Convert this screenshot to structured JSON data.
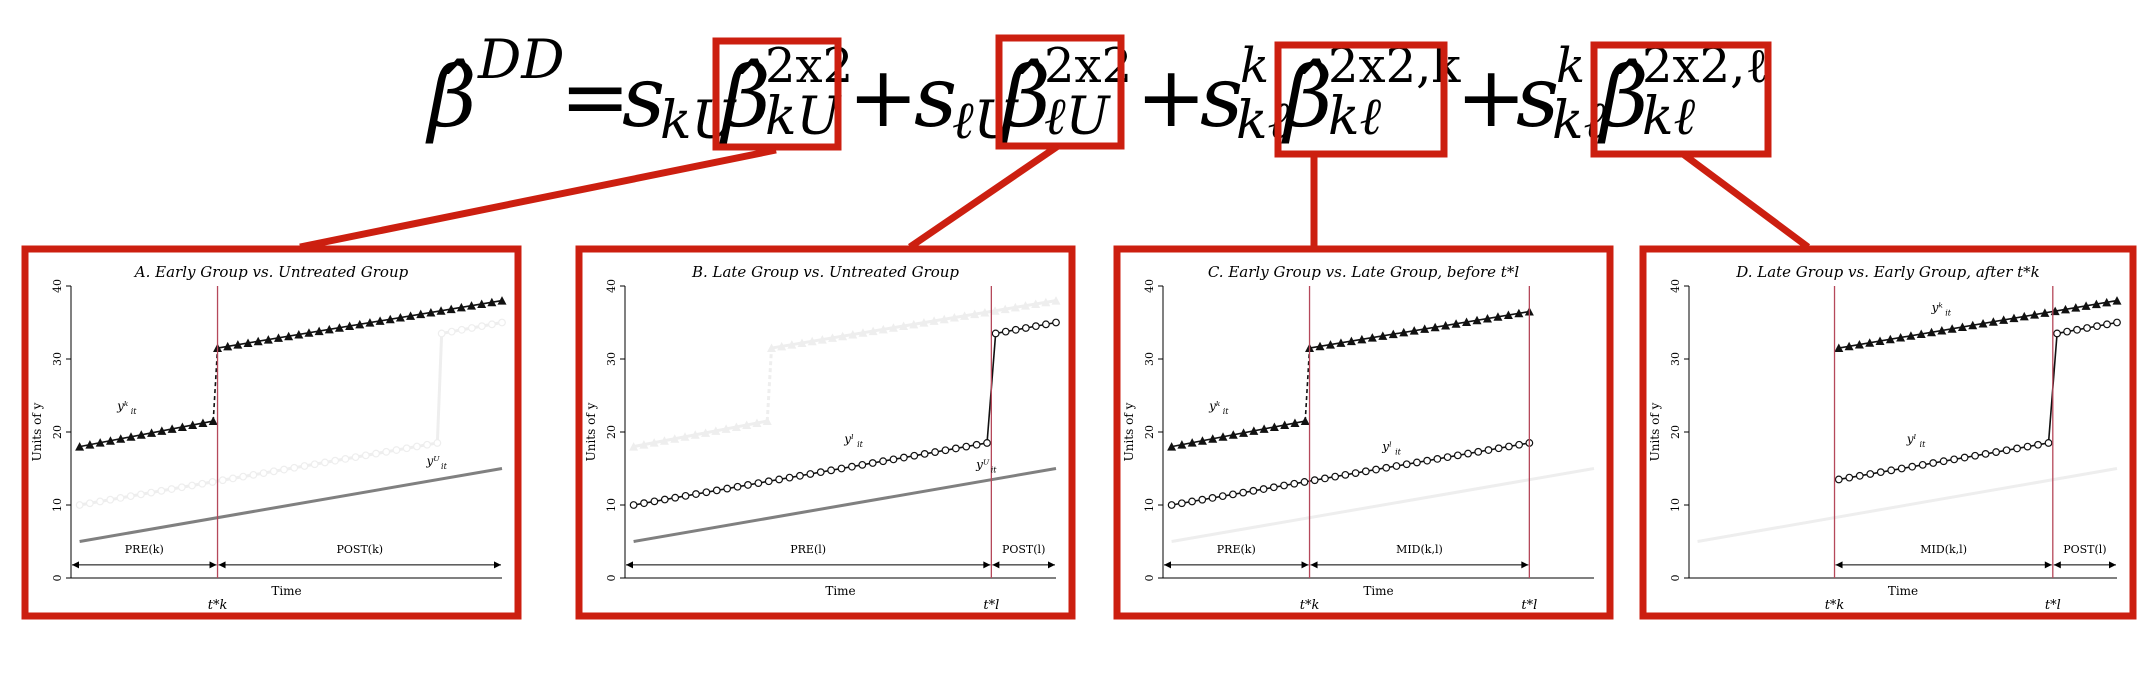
{
  "equation": {
    "lhs": "β̂",
    "lhs_sup": "DD",
    "equals": "=",
    "plus": "+",
    "terms": [
      {
        "weight": "s",
        "weight_sub": "kU",
        "weight_sup": "",
        "beta": "β̂",
        "beta_sup": "2x2",
        "beta_sub": "kU"
      },
      {
        "weight": "s",
        "weight_sub": "ℓU",
        "weight_sup": "",
        "beta": "β̂",
        "beta_sup": "2x2",
        "beta_sub": "ℓU"
      },
      {
        "weight": "s",
        "weight_sub": "kℓ",
        "weight_sup": "k",
        "beta": "β̂",
        "beta_sup": "2x2,k",
        "beta_sub": "kℓ"
      },
      {
        "weight": "s",
        "weight_sub": "kℓ",
        "weight_sup": "k",
        "beta": "β̂",
        "beta_sup": "2x2,ℓ",
        "beta_sub": "kℓ"
      }
    ]
  },
  "colors": {
    "highlight": "#cc1f10",
    "treated_line": "#b5485a",
    "early": "#000000",
    "late": "#222222",
    "untreated": "#808080",
    "faded": "#eeeeee"
  },
  "chart_data": [
    {
      "type": "line",
      "title": "A. Early Group vs. Untreated Group",
      "xlabel": "Time",
      "ylabel": "Units of y",
      "yticks": [
        "0",
        "10",
        "20",
        "30",
        "40"
      ],
      "ylim": [
        0,
        40
      ],
      "xlim": [
        0,
        100
      ],
      "treatment_times": [
        {
          "x": 34,
          "label": "t*k"
        }
      ],
      "periods": [
        {
          "from": 0,
          "to": 34,
          "label": "PRE(k)"
        },
        {
          "from": 34,
          "to": 100,
          "label": "POST(k)"
        }
      ],
      "series_labels": [
        {
          "text": "yᵏ",
          "sub": "it",
          "x": 12,
          "y": 23
        },
        {
          "text": "yᵁ",
          "sub": "it",
          "x": 84,
          "y": 15.5
        }
      ],
      "series": [
        {
          "name": "early",
          "marker": "triangle",
          "style": "active",
          "x0": 2,
          "y0": 18,
          "x1": 33,
          "y1": 21.5,
          "jump_x": 34,
          "x2": 100,
          "y2": 38,
          "y_after": 31.5
        },
        {
          "name": "late",
          "marker": "circle",
          "style": "faded",
          "x0": 2,
          "y0": 10,
          "x1": 85,
          "y1": 18.5,
          "jump_x": 86,
          "x2": 100,
          "y2": 35,
          "y_after": 33.5
        },
        {
          "name": "untreated",
          "marker": "none",
          "style": "gray",
          "x0": 2,
          "y0": 5,
          "x1": 100,
          "y1": 15
        }
      ]
    },
    {
      "type": "line",
      "title": "B. Late Group vs. Untreated Group",
      "xlabel": "Time",
      "ylabel": "Units of y",
      "yticks": [
        "0",
        "10",
        "20",
        "30",
        "40"
      ],
      "ylim": [
        0,
        40
      ],
      "xlim": [
        0,
        100
      ],
      "treatment_times": [
        {
          "x": 85,
          "label": "t*l"
        }
      ],
      "periods": [
        {
          "from": 0,
          "to": 85,
          "label": "PRE(l)"
        },
        {
          "from": 85,
          "to": 100,
          "label": "POST(l)"
        }
      ],
      "series_labels": [
        {
          "text": "yˡ",
          "sub": "it",
          "x": 52,
          "y": 18.5
        },
        {
          "text": "yᵁ",
          "sub": "it",
          "x": 83,
          "y": 15
        }
      ],
      "series": [
        {
          "name": "early",
          "marker": "triangle",
          "style": "faded",
          "x0": 2,
          "y0": 18,
          "x1": 33,
          "y1": 21.5,
          "jump_x": 34,
          "x2": 100,
          "y2": 38,
          "y_after": 31.5
        },
        {
          "name": "late",
          "marker": "circle",
          "style": "active",
          "x0": 2,
          "y0": 10,
          "x1": 84,
          "y1": 18.5,
          "jump_x": 86,
          "x2": 100,
          "y2": 35,
          "y_after": 33.5
        },
        {
          "name": "untreated",
          "marker": "none",
          "style": "gray",
          "x0": 2,
          "y0": 5,
          "x1": 100,
          "y1": 15
        }
      ]
    },
    {
      "type": "line",
      "title": "C. Early Group vs. Late Group, before t*l",
      "xlabel": "Time",
      "ylabel": "Units of y",
      "yticks": [
        "0",
        "10",
        "20",
        "30",
        "40"
      ],
      "ylim": [
        0,
        40
      ],
      "xlim": [
        0,
        100
      ],
      "treatment_times": [
        {
          "x": 34,
          "label": "t*k"
        },
        {
          "x": 85,
          "label": "t*l"
        }
      ],
      "periods": [
        {
          "from": 0,
          "to": 34,
          "label": "PRE(k)"
        },
        {
          "from": 34,
          "to": 85,
          "label": "MID(k,l)"
        }
      ],
      "series_labels": [
        {
          "text": "yᵏ",
          "sub": "it",
          "x": 12,
          "y": 23
        },
        {
          "text": "yˡ",
          "sub": "it",
          "x": 52,
          "y": 17.5
        }
      ],
      "series": [
        {
          "name": "early",
          "marker": "triangle",
          "style": "active",
          "x0": 2,
          "y0": 18,
          "x1": 33,
          "y1": 21.5,
          "jump_x": 34,
          "x2": 85,
          "y2": 36.5,
          "y_after": 31.5
        },
        {
          "name": "late",
          "marker": "circle",
          "style": "active",
          "x0": 2,
          "y0": 10,
          "x1": 85,
          "y1": 18.5
        },
        {
          "name": "untreated",
          "marker": "none",
          "style": "faded",
          "x0": 2,
          "y0": 5,
          "x1": 100,
          "y1": 15
        }
      ]
    },
    {
      "type": "line",
      "title": "D. Late Group vs. Early Group, after t*k",
      "xlabel": "Time",
      "ylabel": "Units of y",
      "yticks": [
        "0",
        "10",
        "20",
        "30",
        "40"
      ],
      "ylim": [
        0,
        40
      ],
      "xlim": [
        0,
        100
      ],
      "treatment_times": [
        {
          "x": 34,
          "label": "t*k"
        },
        {
          "x": 85,
          "label": "t*l"
        }
      ],
      "periods": [
        {
          "from": 34,
          "to": 85,
          "label": "MID(k,l)"
        },
        {
          "from": 85,
          "to": 100,
          "label": "POST(l)"
        }
      ],
      "series_labels": [
        {
          "text": "yᵏ",
          "sub": "it",
          "x": 58,
          "y": 36.5
        },
        {
          "text": "yˡ",
          "sub": "it",
          "x": 52,
          "y": 18.5
        }
      ],
      "series": [
        {
          "name": "early",
          "marker": "triangle",
          "style": "active",
          "x0": 35,
          "y0": 31.5,
          "x1": 100,
          "y1": 38
        },
        {
          "name": "late",
          "marker": "circle",
          "style": "active",
          "x0": 35,
          "y0": 13.5,
          "x1": 84,
          "y1": 18.5,
          "jump_x": 86,
          "x2": 100,
          "y2": 35,
          "y_after": 33.5
        },
        {
          "name": "untreated",
          "marker": "none",
          "style": "faded",
          "x0": 2,
          "y0": 5,
          "x1": 100,
          "y1": 15
        }
      ]
    }
  ]
}
